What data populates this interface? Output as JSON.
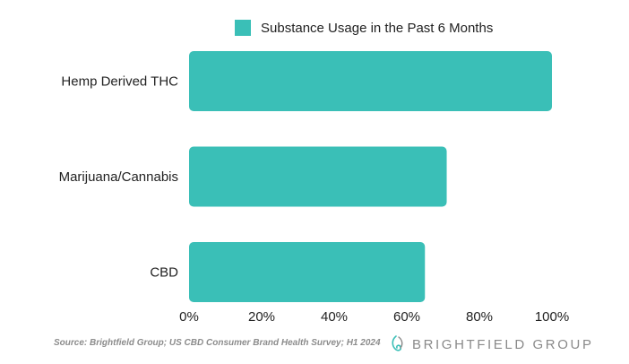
{
  "colors": {
    "bar": "#3abfb7",
    "axis_text": "#222222",
    "source_text": "#8c8c8c",
    "brand_text": "#8a8a8a"
  },
  "chart_data": {
    "type": "bar",
    "orientation": "horizontal",
    "categories": [
      "Hemp Derived THC",
      "Marijuana/Cannabis",
      "CBD"
    ],
    "series": [
      {
        "name": "Substance Usage in the Past 6 Months",
        "values": [
          100,
          71,
          65
        ]
      }
    ],
    "x_ticks": [
      "0%",
      "20%",
      "40%",
      "60%",
      "80%",
      "100%"
    ],
    "xlim": [
      0,
      100
    ],
    "grid": false,
    "legend_position": "top"
  },
  "source_note": "Source: Brightfield Group; US CBD Consumer Brand Health Survey; H1 2024",
  "brand": {
    "name": "BRIGHTFIELD GROUP",
    "logo_icon": "leaf-spiral-icon"
  }
}
